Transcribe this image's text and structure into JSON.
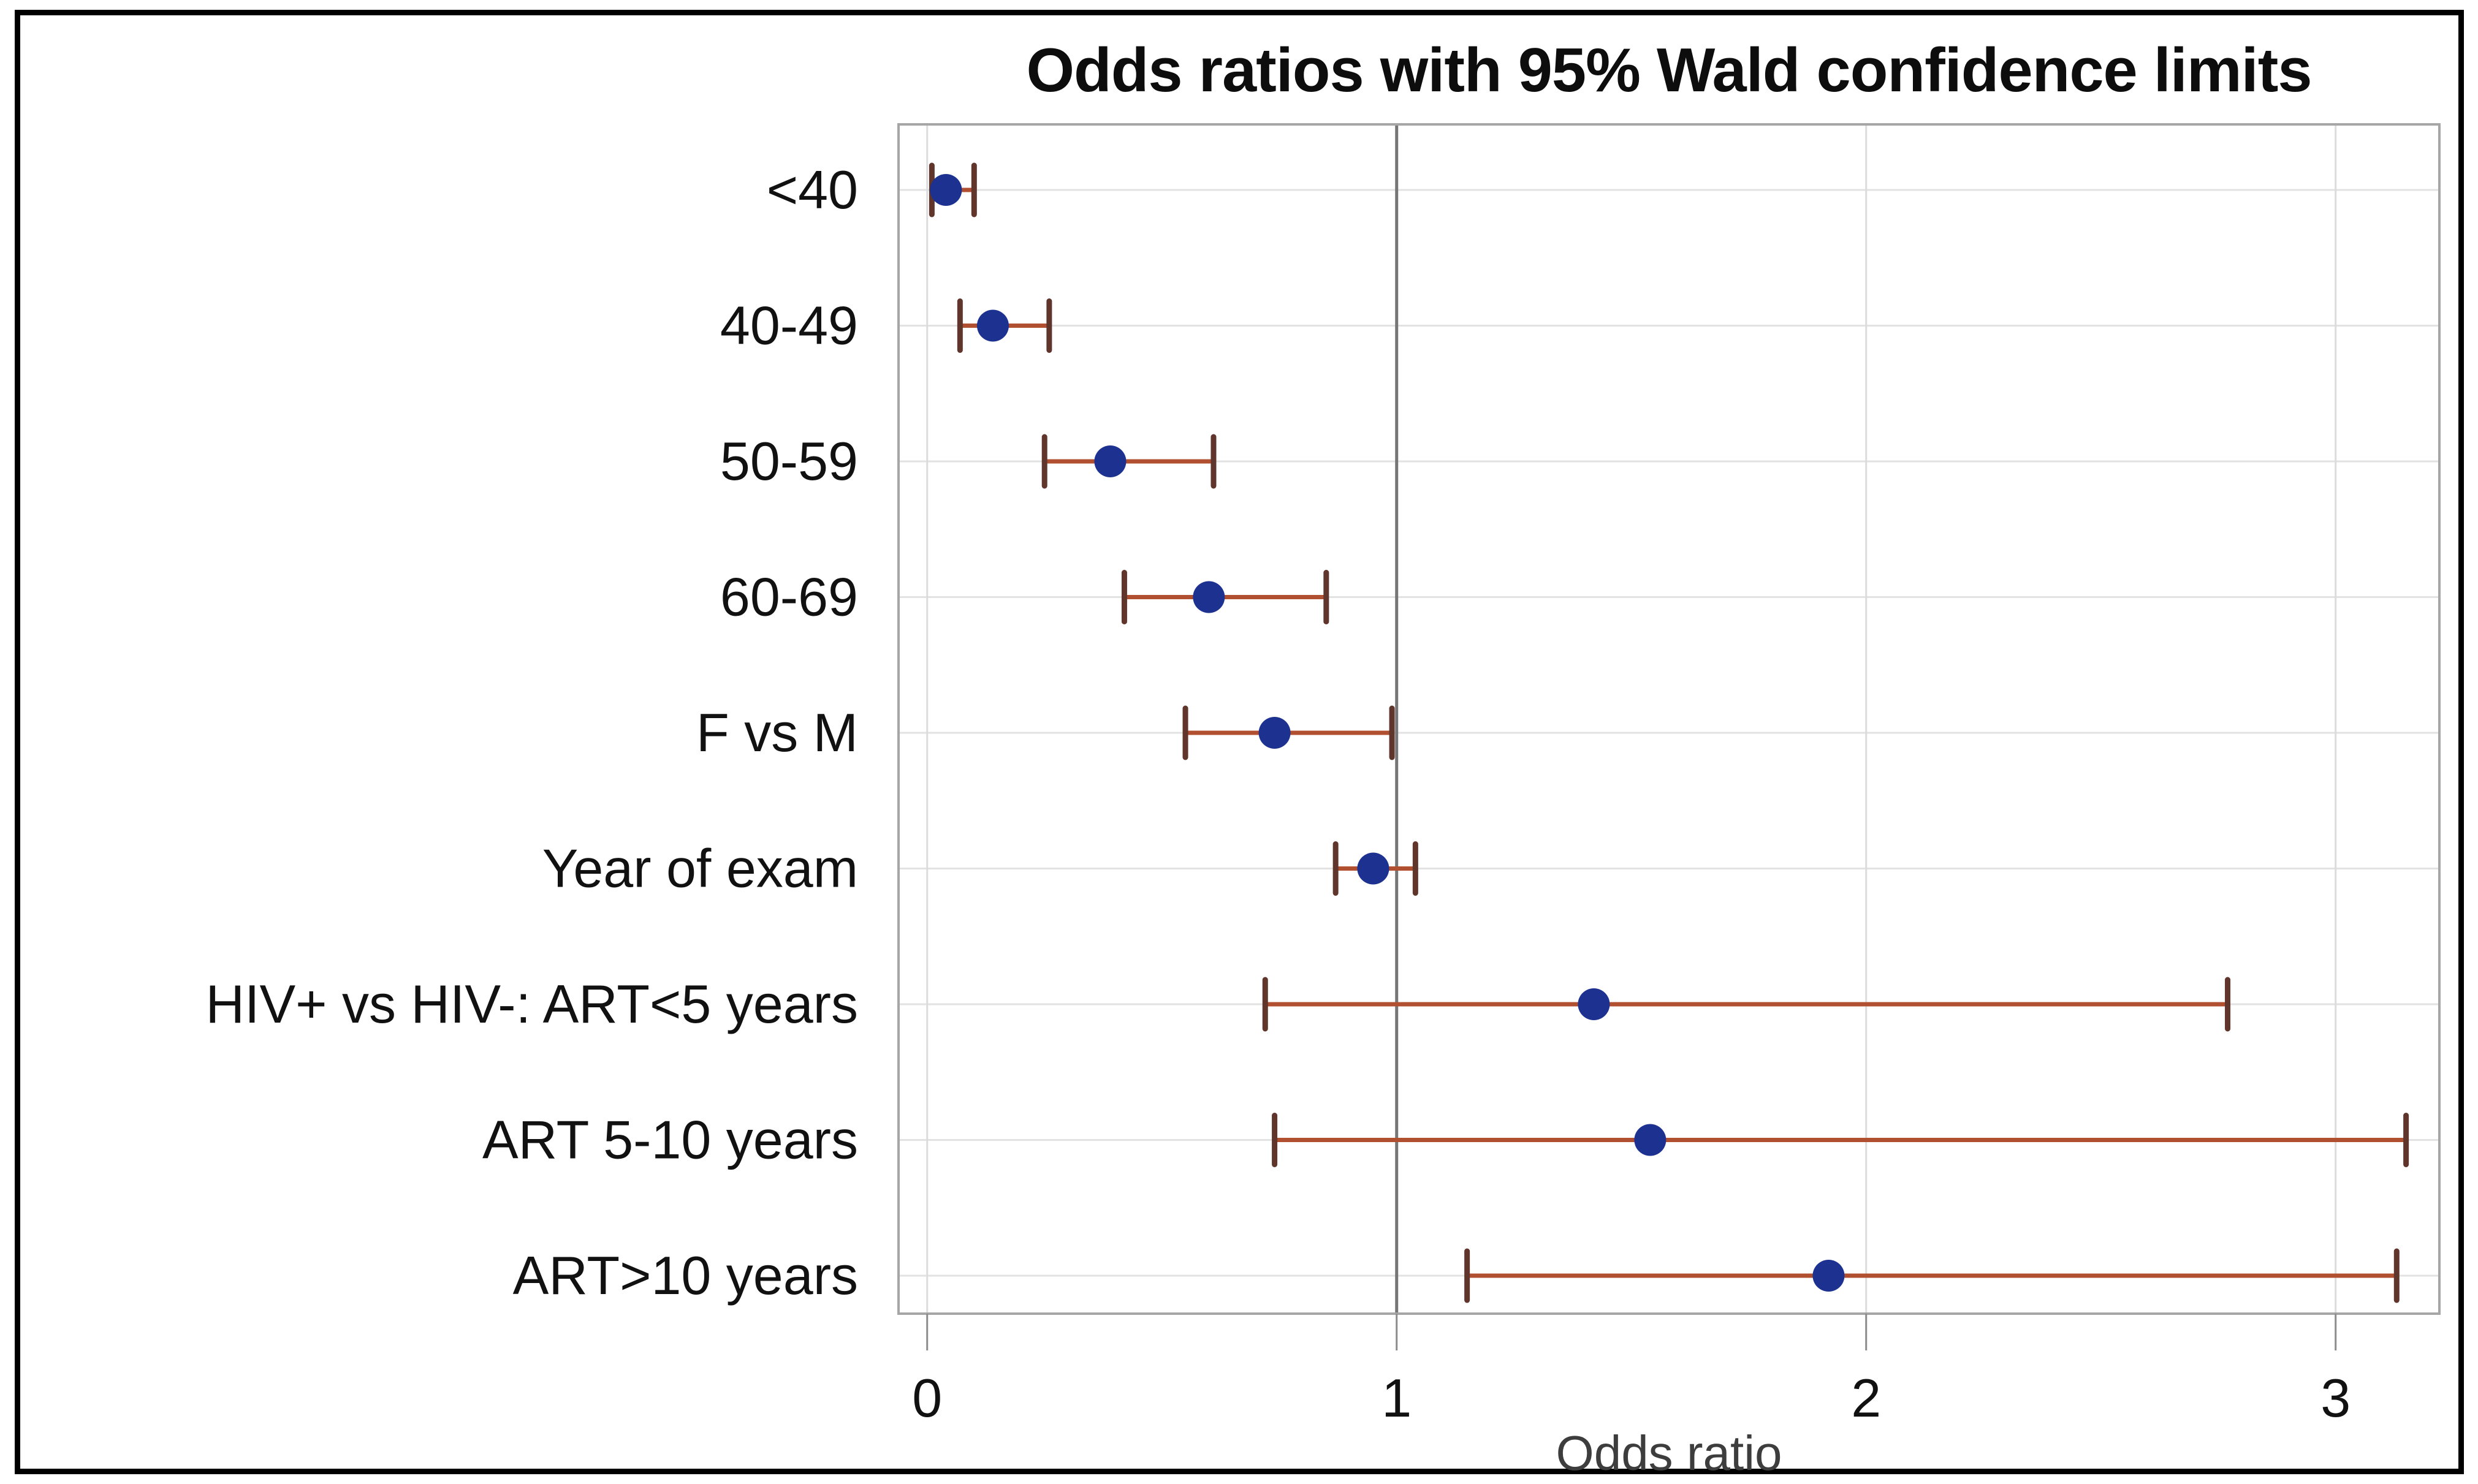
{
  "figure": {
    "title": "Odds ratios with 95% Wald confidence limits",
    "xlabel": "Odds ratio"
  },
  "chart_data": {
    "type": "scatter",
    "subtype": "forest-plot-dot-with-95ci",
    "title": "Odds ratios with 95% Wald confidence limits",
    "xlabel": "Odds ratio",
    "ylabel": "",
    "grid": true,
    "legend": "none",
    "x_ticks": [
      0,
      1,
      2,
      3
    ],
    "xlim": [
      -0.061,
      3.221
    ],
    "reference_line_x": 1,
    "categories": [
      "<40",
      "40-49",
      "50-59",
      "60-69",
      "F vs M",
      "Year of exam",
      "HIV+ vs HIV-:  ART<5 years",
      "ART 5-10 years",
      "ART>10 years"
    ],
    "rows": [
      {
        "label": "<40",
        "or": 0.04,
        "lcl": 0.01,
        "ucl": 0.1
      },
      {
        "label": "40-49",
        "or": 0.14,
        "lcl": 0.07,
        "ucl": 0.26
      },
      {
        "label": "50-59",
        "or": 0.39,
        "lcl": 0.25,
        "ucl": 0.61
      },
      {
        "label": "60-69",
        "or": 0.6,
        "lcl": 0.42,
        "ucl": 0.85
      },
      {
        "label": "F vs M",
        "or": 0.74,
        "lcl": 0.55,
        "ucl": 0.99
      },
      {
        "label": "Year of exam",
        "or": 0.95,
        "lcl": 0.87,
        "ucl": 1.04
      },
      {
        "label": "HIV+ vs HIV-:  ART<5 years",
        "or": 1.42,
        "lcl": 0.72,
        "ucl": 2.77
      },
      {
        "label": "ART 5-10 years",
        "or": 1.54,
        "lcl": 0.74,
        "ucl": 3.15
      },
      {
        "label": "ART>10 years",
        "or": 1.92,
        "lcl": 1.15,
        "ucl": 3.13
      }
    ],
    "colors": {
      "marker": "#1c3190",
      "error_bar": "#b14f31",
      "error_cap": "#5f352c",
      "reference_line": "#767676",
      "gridline": "#e2e2e2",
      "tick_gridline": "#dcdcdc",
      "frame": "#a6a6a6",
      "tick_mark": "#8c8c8c",
      "text": "#111111",
      "axis_label_text": "#3d3d3d",
      "outer_border": "#000000"
    }
  }
}
